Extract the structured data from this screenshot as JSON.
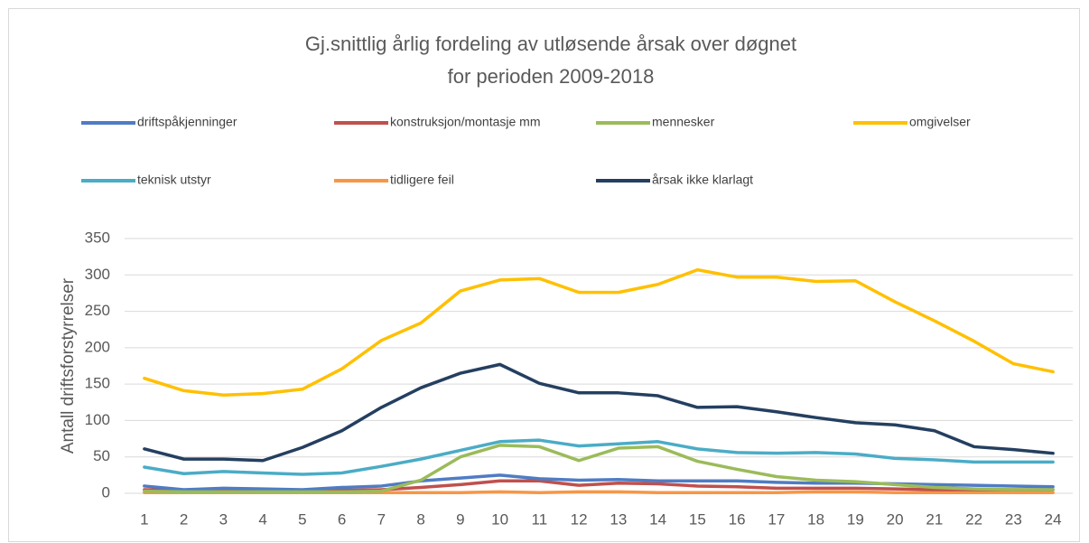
{
  "chart_data": {
    "type": "line",
    "title": [
      "Gj.snittlig årlig fordeling av utløsende årsak over døgnet",
      "for perioden 2009-2018"
    ],
    "y_label": "Antall driftsforstyrrelser",
    "categories": [
      1,
      2,
      3,
      4,
      5,
      6,
      7,
      8,
      9,
      10,
      11,
      12,
      13,
      14,
      15,
      16,
      17,
      18,
      19,
      20,
      21,
      22,
      23,
      24
    ],
    "ylim": [
      0,
      350
    ],
    "yticks": [
      0,
      50,
      100,
      150,
      200,
      250,
      300,
      350
    ],
    "grid": true,
    "legend": "top",
    "series": [
      {
        "name": "driftspåkjenninger",
        "color": "#4f7cc4",
        "values": [
          10,
          5,
          7,
          6,
          5,
          8,
          10,
          17,
          21,
          25,
          20,
          18,
          19,
          17,
          17,
          17,
          15,
          14,
          14,
          13,
          12,
          11,
          10,
          9
        ]
      },
      {
        "name": "konstruksjon/montasje mm",
        "color": "#c0504d",
        "values": [
          5,
          4,
          3,
          3,
          3,
          4,
          5,
          8,
          12,
          17,
          17,
          11,
          14,
          13,
          10,
          9,
          7,
          7,
          7,
          6,
          5,
          5,
          5,
          5
        ]
      },
      {
        "name": "mennesker",
        "color": "#9bbb59",
        "values": [
          3,
          2,
          2,
          2,
          2,
          2,
          3,
          18,
          50,
          66,
          64,
          45,
          62,
          64,
          44,
          33,
          23,
          18,
          16,
          12,
          8,
          6,
          5,
          5
        ]
      },
      {
        "name": "omgivelser",
        "color": "#ffc000",
        "values": [
          158,
          141,
          135,
          137,
          143,
          171,
          210,
          234,
          278,
          293,
          295,
          276,
          276,
          287,
          307,
          297,
          297,
          291,
          292,
          263,
          237,
          209,
          178,
          167
        ]
      },
      {
        "name": "teknisk utstyr",
        "color": "#4bacc6",
        "values": [
          36,
          27,
          30,
          28,
          26,
          28,
          37,
          47,
          59,
          71,
          73,
          65,
          68,
          71,
          61,
          56,
          55,
          56,
          54,
          48,
          46,
          43,
          43,
          43
        ]
      },
      {
        "name": "tidligere feil",
        "color": "#f79646",
        "values": [
          1,
          1,
          1,
          1,
          1,
          1,
          1,
          1,
          1,
          2,
          1,
          2,
          2,
          1,
          1,
          1,
          1,
          2,
          2,
          1,
          1,
          1,
          1,
          1
        ]
      },
      {
        "name": "årsak ikke klarlagt",
        "color": "#243f60",
        "values": [
          61,
          47,
          47,
          45,
          63,
          86,
          118,
          145,
          165,
          177,
          151,
          138,
          138,
          134,
          118,
          119,
          112,
          104,
          97,
          94,
          86,
          64,
          60,
          55
        ]
      }
    ]
  }
}
